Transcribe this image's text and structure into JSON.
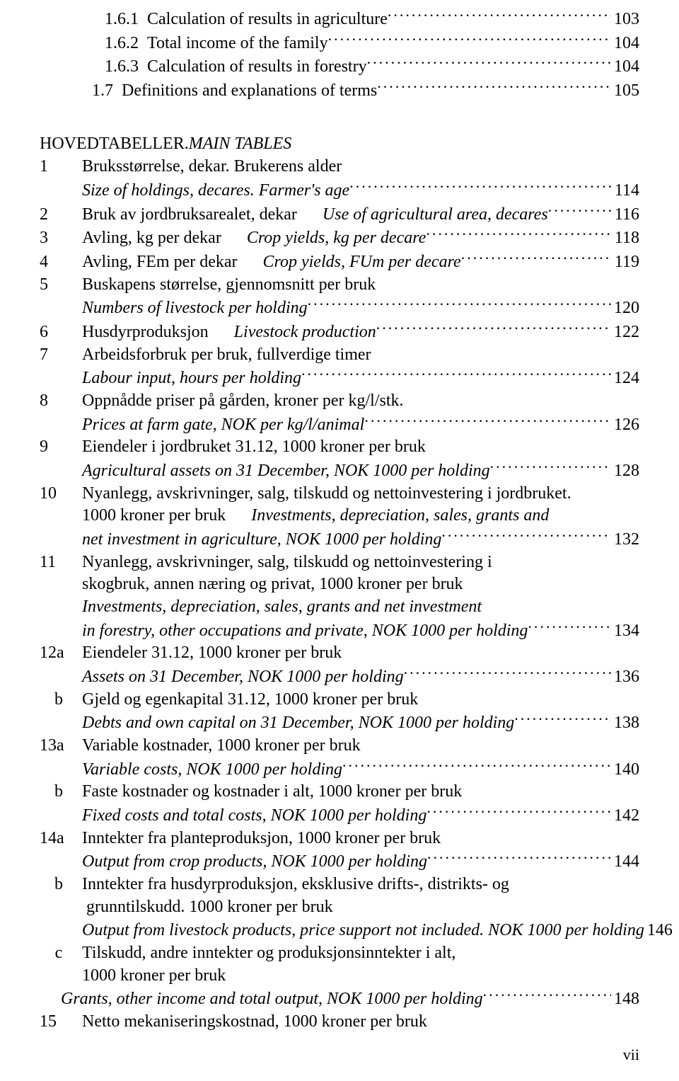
{
  "toc_top": [
    {
      "num": "      1.6.1",
      "text": "Calculation of results in agriculture",
      "page": "103"
    },
    {
      "num": "      1.6.2",
      "text": "Total income of the family",
      "page": "104"
    },
    {
      "num": "      1.6.3",
      "text": "Calculation of results in forestry",
      "page": "104"
    },
    {
      "num": "   1.7",
      "text": "Definitions and explanations of terms",
      "page": "105"
    }
  ],
  "section_head": {
    "norwegian": "HOVEDTABELLER. ",
    "english": "MAIN TABLES"
  },
  "entries": [
    {
      "num": "1",
      "lines": [
        {
          "text": "Bruksstørrelse, dekar. Brukerens alder"
        },
        {
          "text": "Size of holdings, decares. Farmer's age",
          "italic": true,
          "page": "114",
          "leader": true
        }
      ]
    },
    {
      "num": "2",
      "lines": [
        {
          "segments": [
            {
              "text": "Bruk av jordbruksarealet, dekar"
            },
            {
              "spacer": true
            },
            {
              "text": "Use of agricultural area, decares",
              "italic": true
            }
          ],
          "page": "116",
          "leader": true
        }
      ]
    },
    {
      "num": "3",
      "lines": [
        {
          "segments": [
            {
              "text": "Avling, kg per dekar"
            },
            {
              "spacer": true
            },
            {
              "text": "Crop yields, kg per decare",
              "italic": true
            }
          ],
          "page": "118",
          "leader": true
        }
      ]
    },
    {
      "num": "4",
      "lines": [
        {
          "segments": [
            {
              "text": "Avling, FEm per dekar"
            },
            {
              "spacer": true
            },
            {
              "text": "Crop yields, FUm per decare",
              "italic": true
            }
          ],
          "page": "119",
          "leader": true
        }
      ]
    },
    {
      "num": "5",
      "lines": [
        {
          "text": "Buskapens størrelse, gjennomsnitt per bruk"
        },
        {
          "text": "Numbers of livestock per holding",
          "italic": true,
          "page": "120",
          "leader": true
        }
      ]
    },
    {
      "num": "6",
      "lines": [
        {
          "segments": [
            {
              "text": "Husdyrproduksjon"
            },
            {
              "spacer": true
            },
            {
              "text": "Livestock production",
              "italic": true
            }
          ],
          "page": "122",
          "leader": true
        }
      ]
    },
    {
      "num": "7",
      "lines": [
        {
          "text": "Arbeidsforbruk per bruk, fullverdige timer"
        },
        {
          "text": "Labour input, hours per holding",
          "italic": true,
          "page": "124",
          "leader": true
        }
      ]
    },
    {
      "num": "8",
      "lines": [
        {
          "text": "Oppnådde priser på gården, kroner per kg/l/stk."
        },
        {
          "text": "Prices at farm gate, NOK per kg/l/animal",
          "italic": true,
          "page": "126",
          "leader": true
        }
      ]
    },
    {
      "num": "9",
      "lines": [
        {
          "text": "Eiendeler i jordbruket 31.12, 1000 kroner per bruk"
        },
        {
          "text": "Agricultural assets on 31 December, NOK 1000 per holding",
          "italic": true,
          "page": "128",
          "leader": true
        }
      ]
    },
    {
      "num": "10",
      "lines": [
        {
          "text": "Nyanlegg, avskrivninger, salg, tilskudd og nettoinvestering i jordbruket."
        },
        {
          "segments": [
            {
              "text": "1000 kroner per bruk"
            },
            {
              "spacer": true
            },
            {
              "text": "Investments, depreciation, sales, grants and",
              "italic": true
            }
          ]
        },
        {
          "text": "net investment in agriculture, NOK 1000 per holding",
          "italic": true,
          "page": "132",
          "leader": true
        }
      ]
    },
    {
      "num": "11",
      "lines": [
        {
          "text": "Nyanlegg, avskrivninger, salg, tilskudd og nettoinvestering i"
        },
        {
          "text": "skogbruk, annen næring og privat, 1000 kroner per bruk"
        },
        {
          "text": "Investments, depreciation, sales, grants and net investment",
          "italic": true
        },
        {
          "text": "in forestry, other occupations and private, NOK 1000 per holding",
          "italic": true,
          "page": "134",
          "leader": true
        }
      ]
    },
    {
      "num": "12a",
      "lines": [
        {
          "text": "Eiendeler 31.12, 1000 kroner per bruk"
        },
        {
          "text": "Assets on 31 December, NOK 1000 per holding",
          "italic": true,
          "page": "136",
          "leader": true
        }
      ]
    },
    {
      "sub": "b",
      "lines": [
        {
          "text": "Gjeld og egenkapital 31.12, 1000 kroner per bruk"
        },
        {
          "text": "Debts and own capital on 31 December, NOK 1000 per holding",
          "italic": true,
          "page": "138",
          "leader": true
        }
      ]
    },
    {
      "num": "13a",
      "lines": [
        {
          "text": "Variable kostnader, 1000 kroner per bruk"
        },
        {
          "text": "Variable costs, NOK 1000 per holding",
          "italic": true,
          "page": "140",
          "leader": true
        }
      ]
    },
    {
      "sub": "b",
      "lines": [
        {
          "text": "Faste kostnader og kostnader i alt, 1000 kroner per bruk"
        },
        {
          "text": "Fixed costs and total costs, NOK 1000 per holding",
          "italic": true,
          "page": "142",
          "leader": true
        }
      ]
    },
    {
      "num": "14a",
      "lines": [
        {
          "text": "Inntekter fra planteproduksjon, 1000 kroner per bruk"
        },
        {
          "text": "Output from crop products, NOK 1000 per holding",
          "italic": true,
          "page": "144",
          "leader": true
        }
      ]
    },
    {
      "sub": "b",
      "lines": [
        {
          "text": "Inntekter fra husdyrproduksjon, eksklusive drifts-, distrikts- og"
        },
        {
          "text": " grunntilskudd. 1000 kroner per bruk"
        },
        {
          "text": "Output from livestock products, price support not included. NOK 1000 per holding",
          "italic": true,
          "page": "146",
          "leader": true
        }
      ]
    },
    {
      "sub": "c",
      "lines": [
        {
          "text": "Tilskudd, andre inntekter og produksjonsinntekter i alt,"
        },
        {
          "text": "1000 kroner per bruk"
        },
        {
          "text": "Grants, other income and total output, NOK 1000 per holding",
          "indent": true,
          "italic": true,
          "page": "148",
          "leader": true
        }
      ]
    },
    {
      "num": "15",
      "lines": [
        {
          "text": "Netto mekaniseringskostnad, 1000 kroner per bruk"
        }
      ]
    }
  ],
  "footer": "vii"
}
